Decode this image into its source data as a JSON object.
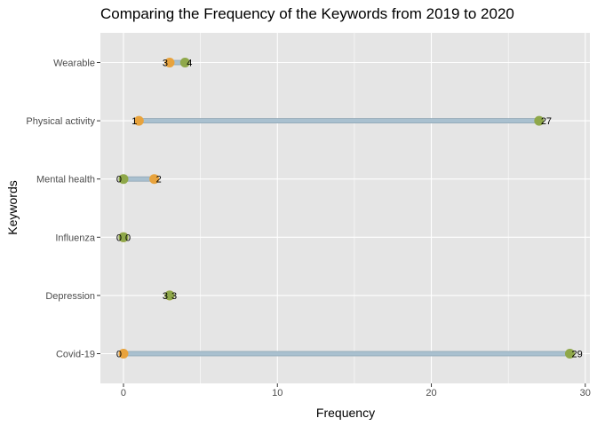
{
  "chart_data": {
    "type": "dumbbell",
    "title": "Comparing the Frequency of the Keywords from 2019 to 2020",
    "xlabel": "Frequency",
    "ylabel": "Keywords",
    "xlim": [
      -1.5,
      30.3
    ],
    "x_ticks": [
      0,
      10,
      20,
      30
    ],
    "x_tick_labels": [
      "0",
      "10",
      "20",
      "30"
    ],
    "grid": true,
    "categories": [
      "Wearable",
      "Physical activity",
      "Mental health",
      "Influenza",
      "Depression",
      "Covid-19"
    ],
    "series": [
      {
        "values": [
          3,
          1,
          2,
          0,
          3,
          0
        ],
        "color": "#E8A33D"
      },
      {
        "values": [
          4,
          27,
          0,
          0,
          3,
          29
        ],
        "color": "#8FA84A"
      }
    ],
    "value_labels": [
      {
        "left": "3",
        "right": "4"
      },
      {
        "left": "1",
        "right": "27"
      },
      {
        "left": "0",
        "right": "2"
      },
      {
        "left": "0",
        "right": "0"
      },
      {
        "left": "3",
        "right": "3"
      },
      {
        "left": "0",
        "right": "29"
      }
    ],
    "colors": {
      "panel": "#E5E5E5",
      "grid": "#FFFFFF",
      "segment": "#A9C0CF",
      "segment_outline": "#8FA6B5"
    }
  }
}
